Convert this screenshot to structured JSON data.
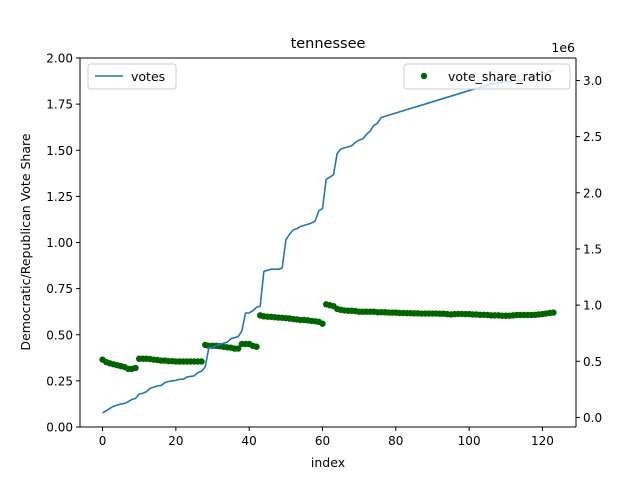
{
  "chart_data": {
    "type": "line",
    "title": "tennessee",
    "xlabel": "index",
    "ylabel_left": "Democratic/Republican Vote Share",
    "ylabel_right": "",
    "right_axis_multiplier": "1e6",
    "xlim": [
      -6.15,
      129.15
    ],
    "ylim_left": [
      0,
      2.0
    ],
    "ylim_right": [
      -0.085,
      3.2
    ],
    "x_ticks": [
      0,
      20,
      40,
      60,
      80,
      100,
      120
    ],
    "y_ticks_left": [
      0.0,
      0.25,
      0.5,
      0.75,
      1.0,
      1.25,
      1.5,
      1.75,
      2.0
    ],
    "y_tick_labels_left": [
      "0.00",
      "0.25",
      "0.50",
      "0.75",
      "1.00",
      "1.25",
      "1.50",
      "1.75",
      "2.00"
    ],
    "y_ticks_right": [
      0.0,
      0.5,
      1.0,
      1.5,
      2.0,
      2.5,
      3.0
    ],
    "y_tick_labels_right": [
      "0.0",
      "0.5",
      "1.0",
      "1.5",
      "2.0",
      "2.5",
      "3.0"
    ],
    "grid": false,
    "legend_left": {
      "placement": "upper left",
      "label": "votes"
    },
    "legend_right": {
      "placement": "upper right",
      "label": "vote_share_ratio"
    },
    "series": [
      {
        "name": "votes",
        "axis": "right",
        "kind": "line",
        "color": "#1f77b4",
        "x": [
          0,
          1,
          2,
          3,
          4,
          5,
          6,
          7,
          8,
          9,
          10,
          11,
          12,
          13,
          14,
          15,
          16,
          17,
          18,
          19,
          20,
          21,
          22,
          23,
          24,
          25,
          26,
          27,
          28,
          29,
          30,
          31,
          32,
          33,
          34,
          35,
          36,
          37,
          38,
          39,
          40,
          41,
          42,
          43,
          44,
          45,
          46,
          47,
          48,
          49,
          50,
          51,
          52,
          53,
          54,
          55,
          56,
          57,
          58,
          59,
          60,
          61,
          62,
          63,
          64,
          65,
          66,
          67,
          68,
          69,
          70,
          71,
          72,
          73,
          74,
          75,
          76,
          77,
          78,
          79,
          80,
          81,
          82,
          83,
          84,
          85,
          86,
          87,
          88,
          89,
          90,
          91,
          92,
          93,
          94,
          95,
          96,
          97,
          98,
          99,
          100,
          101,
          102,
          103,
          104,
          105,
          106,
          107,
          108,
          109,
          110,
          111,
          112,
          113,
          114,
          115,
          116,
          117,
          118,
          119,
          120,
          121,
          122,
          123
        ],
        "values": [
          0.04,
          0.06,
          0.08,
          0.1,
          0.11,
          0.12,
          0.125,
          0.14,
          0.16,
          0.17,
          0.21,
          0.215,
          0.23,
          0.26,
          0.27,
          0.28,
          0.285,
          0.31,
          0.32,
          0.325,
          0.33,
          0.34,
          0.34,
          0.36,
          0.365,
          0.37,
          0.4,
          0.41,
          0.45,
          0.62,
          0.62,
          0.64,
          0.65,
          0.66,
          0.67,
          0.7,
          0.71,
          0.72,
          0.77,
          0.93,
          0.93,
          0.95,
          0.98,
          0.99,
          1.3,
          1.31,
          1.32,
          1.32,
          1.32,
          1.33,
          1.58,
          1.63,
          1.67,
          1.68,
          1.7,
          1.71,
          1.72,
          1.73,
          1.75,
          1.84,
          1.86,
          2.12,
          2.14,
          2.16,
          2.35,
          2.39,
          2.4,
          2.41,
          2.42,
          2.45,
          2.47,
          2.48,
          2.52,
          2.55,
          2.6,
          2.62,
          2.67,
          2.68,
          2.69,
          2.7,
          2.71,
          2.72,
          2.73,
          2.74,
          2.75,
          2.76,
          2.77,
          2.78,
          2.79,
          2.8,
          2.81,
          2.82,
          2.83,
          2.84,
          2.85,
          2.86,
          2.87,
          2.88,
          2.89,
          2.9,
          2.91,
          2.92,
          2.93,
          2.94,
          2.95,
          2.96,
          2.97,
          2.97,
          2.98,
          2.98,
          2.99,
          2.99,
          3.0,
          3.0,
          3.0,
          3.01,
          3.02,
          3.03,
          3.04,
          3.05,
          3.06,
          3.07,
          3.08,
          3.09
        ]
      },
      {
        "name": "vote_share_ratio",
        "axis": "left",
        "kind": "scatter",
        "color": "#006400",
        "x": [
          0,
          1,
          2,
          3,
          4,
          5,
          6,
          7,
          8,
          9,
          10,
          11,
          12,
          13,
          14,
          15,
          16,
          17,
          18,
          19,
          20,
          21,
          22,
          23,
          24,
          25,
          26,
          27,
          28,
          29,
          30,
          31,
          32,
          33,
          34,
          35,
          36,
          37,
          38,
          39,
          40,
          41,
          42,
          43,
          44,
          45,
          46,
          47,
          48,
          49,
          50,
          51,
          52,
          53,
          54,
          55,
          56,
          57,
          58,
          59,
          60,
          61,
          62,
          63,
          64,
          65,
          66,
          67,
          68,
          69,
          70,
          71,
          72,
          73,
          74,
          75,
          76,
          77,
          78,
          79,
          80,
          81,
          82,
          83,
          84,
          85,
          86,
          87,
          88,
          89,
          90,
          91,
          92,
          93,
          94,
          95,
          96,
          97,
          98,
          99,
          100,
          101,
          102,
          103,
          104,
          105,
          106,
          107,
          108,
          109,
          110,
          111,
          112,
          113,
          114,
          115,
          116,
          117,
          118,
          119,
          120,
          121,
          122,
          123
        ],
        "values": [
          0.365,
          0.352,
          0.345,
          0.34,
          0.335,
          0.33,
          0.325,
          0.315,
          0.315,
          0.32,
          0.37,
          0.37,
          0.37,
          0.368,
          0.365,
          0.363,
          0.36,
          0.36,
          0.357,
          0.357,
          0.355,
          0.355,
          0.355,
          0.355,
          0.355,
          0.355,
          0.355,
          0.355,
          0.445,
          0.44,
          0.44,
          0.44,
          0.438,
          0.435,
          0.432,
          0.43,
          0.425,
          0.425,
          0.45,
          0.45,
          0.45,
          0.44,
          0.435,
          0.605,
          0.6,
          0.598,
          0.597,
          0.595,
          0.593,
          0.592,
          0.59,
          0.588,
          0.585,
          0.583,
          0.58,
          0.58,
          0.578,
          0.575,
          0.573,
          0.57,
          0.56,
          0.665,
          0.66,
          0.655,
          0.64,
          0.635,
          0.632,
          0.63,
          0.63,
          0.628,
          0.625,
          0.625,
          0.625,
          0.625,
          0.625,
          0.622,
          0.622,
          0.622,
          0.62,
          0.62,
          0.62,
          0.618,
          0.618,
          0.617,
          0.617,
          0.616,
          0.616,
          0.615,
          0.615,
          0.615,
          0.615,
          0.615,
          0.614,
          0.614,
          0.612,
          0.61,
          0.612,
          0.613,
          0.613,
          0.612,
          0.612,
          0.61,
          0.61,
          0.608,
          0.608,
          0.607,
          0.605,
          0.605,
          0.605,
          0.603,
          0.603,
          0.603,
          0.605,
          0.607,
          0.607,
          0.607,
          0.607,
          0.607,
          0.608,
          0.61,
          0.612,
          0.615,
          0.618,
          0.62
        ]
      }
    ]
  }
}
